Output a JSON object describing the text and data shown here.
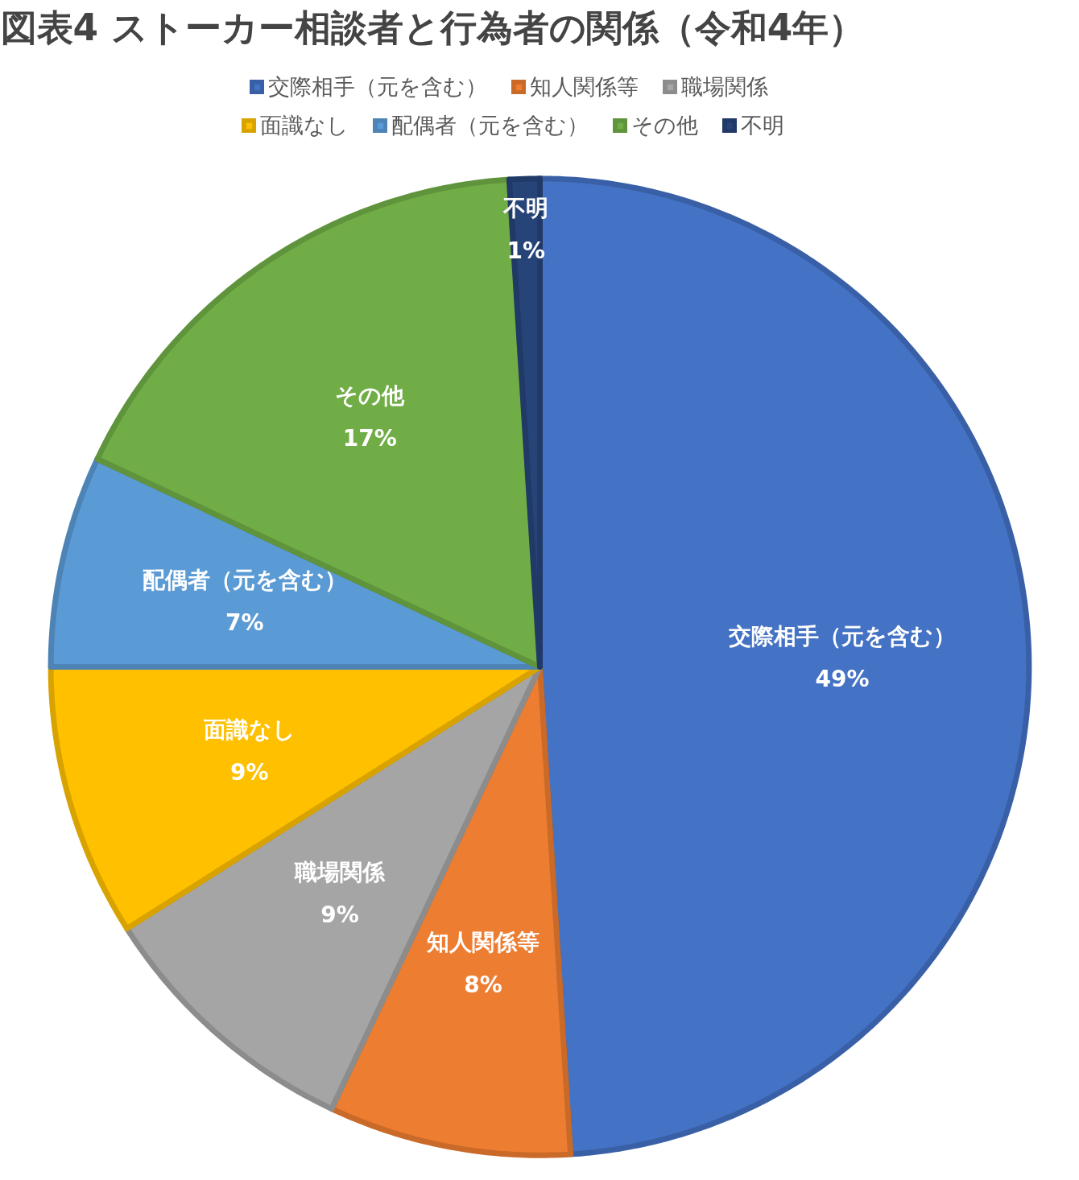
{
  "chart_data": {
    "type": "pie",
    "title": "図表4 ストーカー相談者と行為者の関係（令和4年）",
    "categories": [
      "交際相手（元を含む）",
      "知人関係等",
      "職場関係",
      "面識なし",
      "配偶者（元を含む）",
      "その他",
      "不明"
    ],
    "values": [
      49,
      8,
      9,
      9,
      7,
      17,
      1
    ],
    "value_labels": [
      "49%",
      "8%",
      "9%",
      "9%",
      "7%",
      "17%",
      "1%"
    ],
    "colors": [
      "#4472c4",
      "#ed7d31",
      "#a5a5a5",
      "#ffc000",
      "#5b9bd5",
      "#70ad47",
      "#264478"
    ],
    "legend": "top"
  }
}
